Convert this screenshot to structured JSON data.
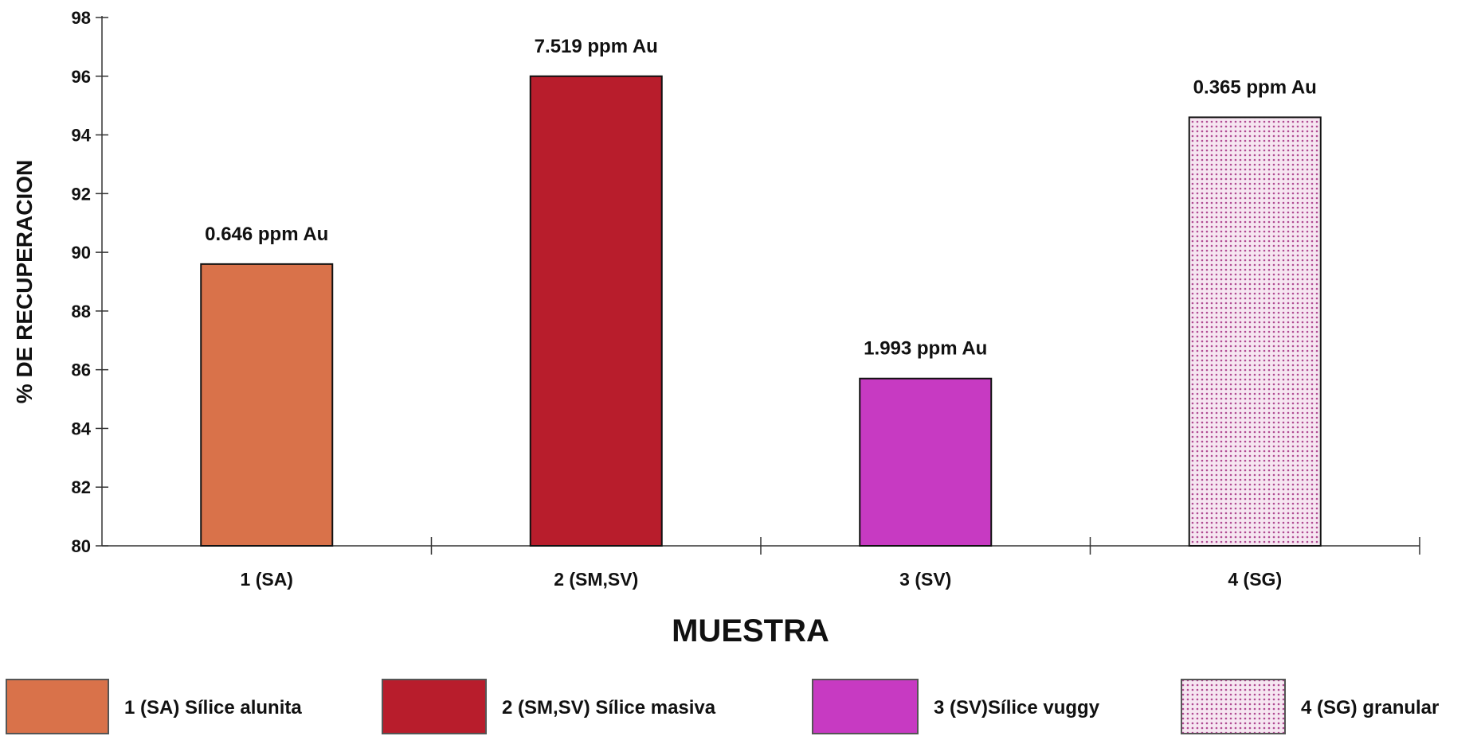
{
  "chart_data": {
    "type": "bar",
    "ylabel": "% DE RECUPERACION",
    "xlabel": "MUESTRA",
    "ylim": [
      80,
      98
    ],
    "yticks": [
      80,
      82,
      84,
      86,
      88,
      90,
      92,
      94,
      96,
      98
    ],
    "categories": [
      "1 (SA)",
      "2 (SM,SV)",
      "3 (SV)",
      "4 (SG)"
    ],
    "values": [
      89.6,
      96.0,
      85.7,
      94.6
    ],
    "annotations": [
      "0.646 ppm Au",
      "7.519 ppm Au",
      "1.993 ppm Au",
      "0.365 ppm Au"
    ],
    "colors": [
      "#d9724a",
      "#b81d2c",
      "#c73ac2",
      "#f3e3ee"
    ],
    "patterns": [
      "solid",
      "solid",
      "solid",
      "dotted"
    ],
    "legend": {
      "position": "bottom",
      "items": [
        "1 (SA)  Sílice alunita",
        "2 (SM,SV) Sílice masiva",
        "3 (SV)Sílice vuggy",
        "4 (SG)  granular"
      ]
    },
    "grid": false
  }
}
